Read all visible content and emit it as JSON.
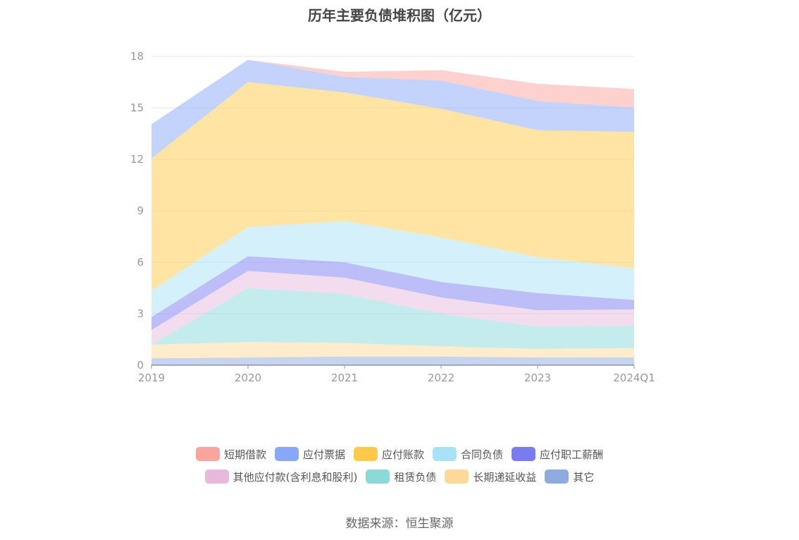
{
  "chart_data": {
    "type": "area",
    "stacked": true,
    "title": "历年主要负债堆积图（亿元）",
    "categories": [
      "2019",
      "2020",
      "2021",
      "2022",
      "2023",
      "2024Q1"
    ],
    "ylim": [
      0,
      18
    ],
    "yticks": [
      "0",
      "3",
      "6",
      "9",
      "12",
      "15",
      "18"
    ],
    "grid": true,
    "legend_position": "bottom",
    "series": [
      {
        "name": "其它",
        "color": "#8FAADC",
        "values": [
          0.4,
          0.45,
          0.5,
          0.5,
          0.45,
          0.45
        ]
      },
      {
        "name": "长期递延收益",
        "color": "#FFD99A",
        "values": [
          0.8,
          0.9,
          0.8,
          0.6,
          0.5,
          0.55
        ]
      },
      {
        "name": "租赁负债",
        "color": "#8BD9D9",
        "values": [
          0.0,
          3.15,
          2.85,
          1.9,
          1.3,
          1.3
        ]
      },
      {
        "name": "其他应付款(含利息和股利)",
        "color": "#E8B9DB",
        "values": [
          0.85,
          1.0,
          0.95,
          0.95,
          0.95,
          0.95
        ]
      },
      {
        "name": "应付职工薪酬",
        "color": "#7B7BF0",
        "values": [
          0.75,
          0.85,
          0.9,
          0.9,
          1.0,
          0.55
        ]
      },
      {
        "name": "合同负债",
        "color": "#A9E2F8",
        "values": [
          1.55,
          1.7,
          2.4,
          2.6,
          2.1,
          1.85
        ]
      },
      {
        "name": "应付账款",
        "color": "#FFC94A",
        "values": [
          7.7,
          8.45,
          7.5,
          7.5,
          7.4,
          7.95
        ]
      },
      {
        "name": "应付票据",
        "color": "#8AA8FA",
        "values": [
          2.0,
          1.3,
          0.9,
          1.65,
          1.7,
          1.4
        ]
      },
      {
        "name": "短期借款",
        "color": "#F9A49D",
        "values": [
          0.0,
          0.0,
          0.3,
          0.6,
          1.0,
          1.1
        ]
      }
    ],
    "legend_rows": [
      [
        "短期借款",
        "应付票据",
        "应付账款",
        "合同负债",
        "应付职工薪酬"
      ],
      [
        "其他应付款(含利息和股利)",
        "租赁负债",
        "长期递延收益",
        "其它"
      ]
    ]
  },
  "source": "数据来源：恒生聚源"
}
